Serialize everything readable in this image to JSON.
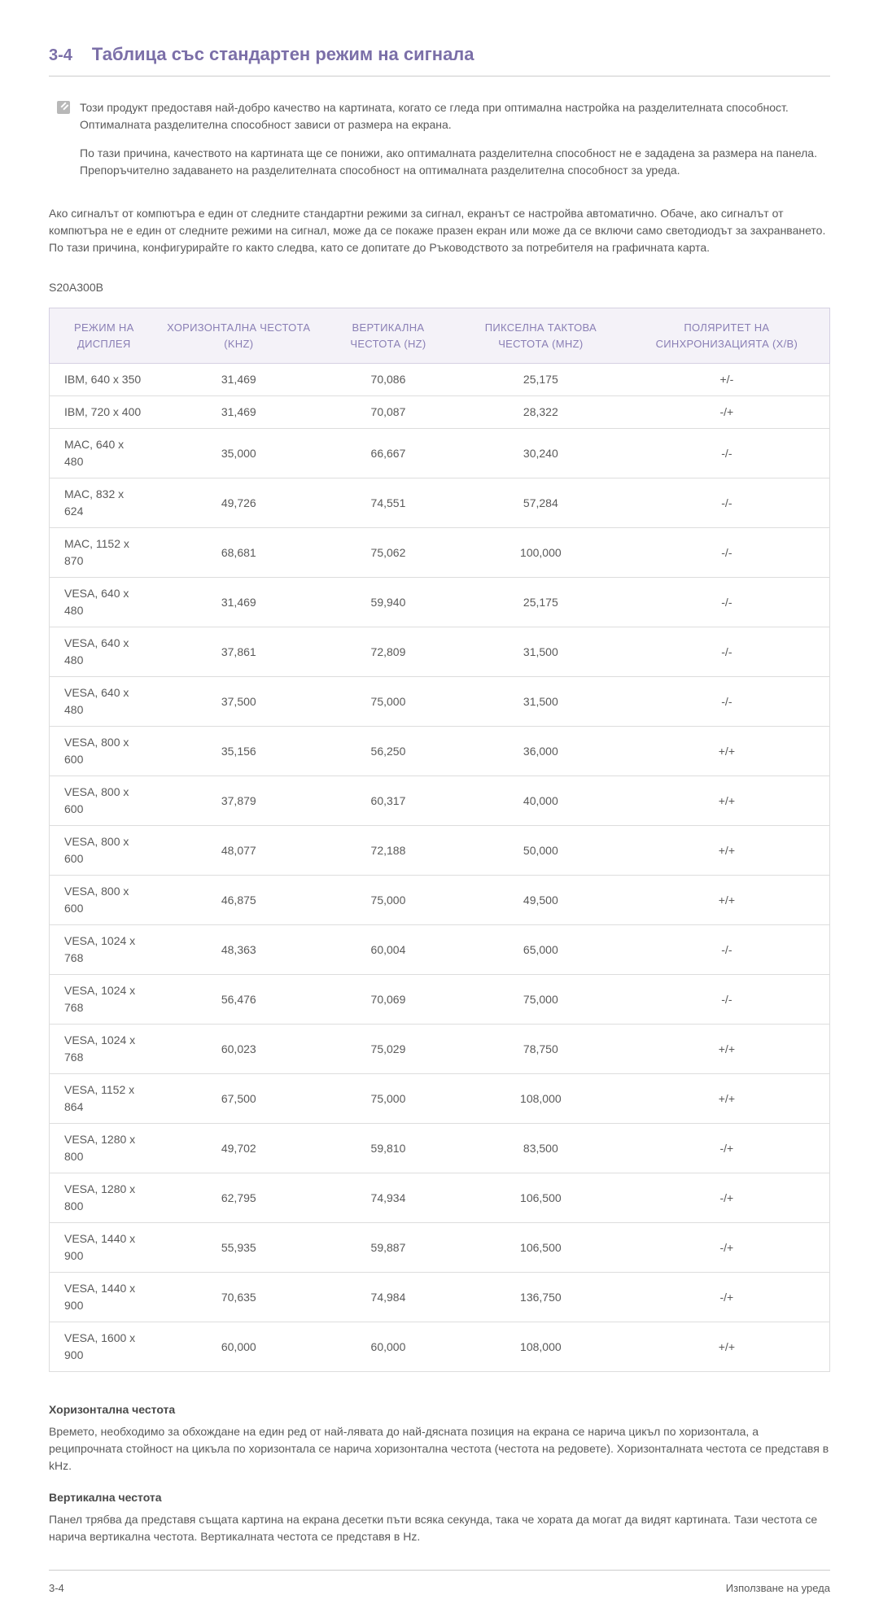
{
  "header": {
    "number": "3-4",
    "title": "Таблица със стандартен режим на сигнала"
  },
  "note": {
    "p1": "Този продукт предоставя най-добро качество на картината, когато се гледа при оптимална настройка на разделителната способност. Оптималната разделителна способност зависи от размера на екрана.",
    "p2": "По тази причина, качеството на картината ще се понижи, ако оптималната разделителна способност не е зададена за размера на панела. Препоръчително задаването на разделителната способност на оптималната разделителна способност за уреда."
  },
  "body": "Ако сигналът от компютъра е един от следните стандартни режими за сигнал, екранът се настройва автоматично. Обаче, ако сигналът от компютъра не е един от следните режими на сигнал, може да се покаже празен екран или може да се включи само светодиодът за захранването. По тази причина, конфигурирайте го както следва, като се допитате до Ръководството за потребителя на графичната карта.",
  "model": "S20A300B",
  "table": {
    "columns": [
      "РЕЖИМ НА ДИСПЛЕЯ",
      "ХОРИЗОНТАЛНА ЧЕСТОТА (KHZ)",
      "ВЕРТИКАЛНА ЧЕСТОТА (HZ)",
      "ПИКСЕЛНА ТАКТОВА ЧЕСТОТА (MHZ)",
      "ПОЛЯРИТЕТ НА СИНХРОНИЗАЦИЯТА (Х/В)"
    ],
    "rows": [
      [
        "IBM, 640 x 350",
        "31,469",
        "70,086",
        "25,175",
        "+/-"
      ],
      [
        "IBM, 720 x 400",
        "31,469",
        "70,087",
        "28,322",
        "-/+"
      ],
      [
        "MAC, 640 x 480",
        "35,000",
        "66,667",
        "30,240",
        "-/-"
      ],
      [
        "MAC, 832 x 624",
        "49,726",
        "74,551",
        "57,284",
        "-/-"
      ],
      [
        "MAC, 1152 x 870",
        "68,681",
        "75,062",
        "100,000",
        "-/-"
      ],
      [
        "VESA, 640 x 480",
        "31,469",
        "59,940",
        "25,175",
        "-/-"
      ],
      [
        "VESA, 640 x 480",
        "37,861",
        "72,809",
        "31,500",
        "-/-"
      ],
      [
        "VESA, 640 x 480",
        "37,500",
        "75,000",
        "31,500",
        "-/-"
      ],
      [
        "VESA, 800 x 600",
        "35,156",
        "56,250",
        "36,000",
        "+/+"
      ],
      [
        "VESA, 800 x 600",
        "37,879",
        "60,317",
        "40,000",
        "+/+"
      ],
      [
        "VESA, 800 x 600",
        "48,077",
        "72,188",
        "50,000",
        "+/+"
      ],
      [
        "VESA, 800 x 600",
        "46,875",
        "75,000",
        "49,500",
        "+/+"
      ],
      [
        "VESA, 1024 x 768",
        "48,363",
        "60,004",
        "65,000",
        "-/-"
      ],
      [
        "VESA, 1024 x 768",
        "56,476",
        "70,069",
        "75,000",
        "-/-"
      ],
      [
        "VESA, 1024 x 768",
        "60,023",
        "75,029",
        "78,750",
        "+/+"
      ],
      [
        "VESA, 1152 x 864",
        "67,500",
        "75,000",
        "108,000",
        "+/+"
      ],
      [
        "VESA, 1280 x 800",
        "49,702",
        "59,810",
        "83,500",
        "-/+"
      ],
      [
        "VESA, 1280 x 800",
        "62,795",
        "74,934",
        "106,500",
        "-/+"
      ],
      [
        "VESA, 1440 x 900",
        "55,935",
        "59,887",
        "106,500",
        "-/+"
      ],
      [
        "VESA, 1440 x 900",
        "70,635",
        "74,984",
        "136,750",
        "-/+"
      ],
      [
        "VESA, 1600 x 900",
        "60,000",
        "60,000",
        "108,000",
        "+/+"
      ]
    ]
  },
  "defs": {
    "t1": "Хоризонтална честота",
    "d1": "Времето, необходимо за обхождане на един ред от най-лявата до най-дясната позиция на екрана се нарича цикъл по хоризонтала, а реципрочната стойност на цикъла по хоризонтала се нарича хоризонтална честота (честота на редовете). Хоризонталната честота се представя в kHz.",
    "t2": "Вертикална честота",
    "d2": "Панел трябва да представя същата картина на екрана десетки пъти всяка секунда, така че хората да могат да видят картината. Тази честота се нарича вертикална честота. Вертикалната честота се представя в Hz."
  },
  "footer": {
    "left": "3-4",
    "right": "Използване на уреда"
  }
}
